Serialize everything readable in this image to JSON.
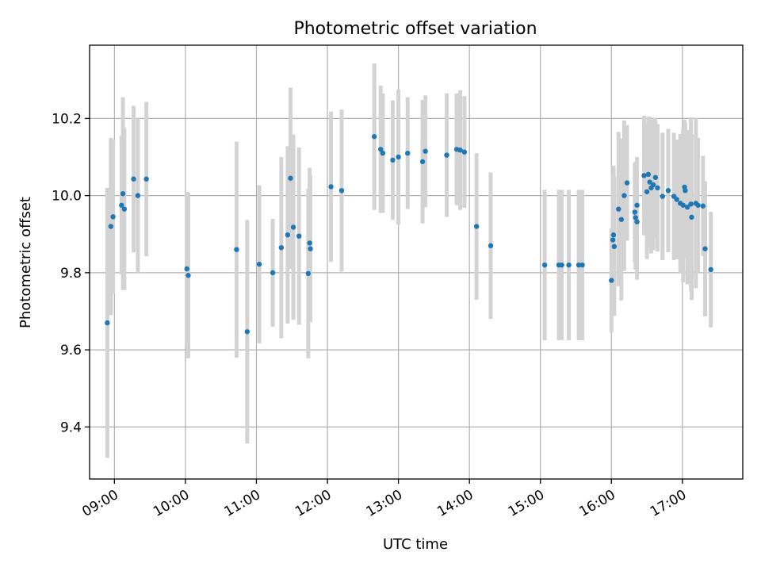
{
  "chart_data": {
    "type": "scatter",
    "title": "Photometric offset variation",
    "xlabel": "UTC time",
    "ylabel": "Photometric offset",
    "xlim": [
      8.65,
      17.85
    ],
    "ylim": [
      9.265,
      10.39
    ],
    "grid": true,
    "point_color": "#1f77b4",
    "errorbar_color": "#d3d3d3",
    "x_ticks": [
      {
        "value": 9,
        "label": "09:00"
      },
      {
        "value": 10,
        "label": "10:00"
      },
      {
        "value": 11,
        "label": "11:00"
      },
      {
        "value": 12,
        "label": "12:00"
      },
      {
        "value": 13,
        "label": "13:00"
      },
      {
        "value": 14,
        "label": "14:00"
      },
      {
        "value": 15,
        "label": "15:00"
      },
      {
        "value": 16,
        "label": "16:00"
      },
      {
        "value": 17,
        "label": "17:00"
      }
    ],
    "y_ticks": [
      {
        "value": 9.4,
        "label": "9.4"
      },
      {
        "value": 9.6,
        "label": "9.6"
      },
      {
        "value": 9.8,
        "label": "9.8"
      },
      {
        "value": 10.0,
        "label": "10.0"
      },
      {
        "value": 10.2,
        "label": "10.2"
      }
    ],
    "points": [
      {
        "x": 8.9,
        "y": 9.67,
        "err": 0.35
      },
      {
        "x": 8.95,
        "y": 9.92,
        "err": 0.23
      },
      {
        "x": 8.98,
        "y": 9.945,
        "err": 0.2
      },
      {
        "x": 9.1,
        "y": 9.975,
        "err": 0.18
      },
      {
        "x": 9.12,
        "y": 10.005,
        "err": 0.25
      },
      {
        "x": 9.14,
        "y": 9.965,
        "err": 0.21
      },
      {
        "x": 9.27,
        "y": 10.043,
        "err": 0.19
      },
      {
        "x": 9.33,
        "y": 10.0,
        "err": 0.2
      },
      {
        "x": 9.45,
        "y": 10.043,
        "err": 0.2
      },
      {
        "x": 10.02,
        "y": 9.81,
        "err": 0.2
      },
      {
        "x": 10.04,
        "y": 9.793,
        "err": 0.215
      },
      {
        "x": 10.72,
        "y": 9.86,
        "err": 0.28
      },
      {
        "x": 10.87,
        "y": 9.647,
        "err": 0.29
      },
      {
        "x": 11.04,
        "y": 9.822,
        "err": 0.205
      },
      {
        "x": 11.23,
        "y": 9.8,
        "err": 0.14
      },
      {
        "x": 11.35,
        "y": 9.865,
        "err": 0.235
      },
      {
        "x": 11.44,
        "y": 9.898,
        "err": 0.23
      },
      {
        "x": 11.48,
        "y": 10.045,
        "err": 0.235
      },
      {
        "x": 11.52,
        "y": 9.918,
        "err": 0.24
      },
      {
        "x": 11.6,
        "y": 9.895,
        "err": 0.23
      },
      {
        "x": 11.73,
        "y": 9.798,
        "err": 0.22
      },
      {
        "x": 11.75,
        "y": 9.877,
        "err": 0.195
      },
      {
        "x": 11.76,
        "y": 9.862,
        "err": 0.19
      },
      {
        "x": 12.05,
        "y": 10.023,
        "err": 0.195
      },
      {
        "x": 12.2,
        "y": 10.013,
        "err": 0.21
      },
      {
        "x": 12.66,
        "y": 10.153,
        "err": 0.19
      },
      {
        "x": 12.75,
        "y": 10.12,
        "err": 0.165
      },
      {
        "x": 12.78,
        "y": 10.11,
        "err": 0.155
      },
      {
        "x": 12.92,
        "y": 10.092,
        "err": 0.155
      },
      {
        "x": 13.0,
        "y": 10.1,
        "err": 0.175
      },
      {
        "x": 13.13,
        "y": 10.11,
        "err": 0.145
      },
      {
        "x": 13.34,
        "y": 10.088,
        "err": 0.16
      },
      {
        "x": 13.38,
        "y": 10.115,
        "err": 0.145
      },
      {
        "x": 13.68,
        "y": 10.105,
        "err": 0.16
      },
      {
        "x": 13.82,
        "y": 10.12,
        "err": 0.145
      },
      {
        "x": 13.87,
        "y": 10.118,
        "err": 0.155
      },
      {
        "x": 13.93,
        "y": 10.113,
        "err": 0.145
      },
      {
        "x": 14.1,
        "y": 9.92,
        "err": 0.19
      },
      {
        "x": 14.3,
        "y": 9.87,
        "err": 0.19
      },
      {
        "x": 15.06,
        "y": 9.82,
        "err": 0.195
      },
      {
        "x": 15.26,
        "y": 9.82,
        "err": 0.195
      },
      {
        "x": 15.3,
        "y": 9.82,
        "err": 0.195
      },
      {
        "x": 15.4,
        "y": 9.82,
        "err": 0.195
      },
      {
        "x": 15.54,
        "y": 9.82,
        "err": 0.195
      },
      {
        "x": 15.59,
        "y": 9.82,
        "err": 0.195
      },
      {
        "x": 16.0,
        "y": 9.78,
        "err": 0.135
      },
      {
        "x": 16.02,
        "y": 9.885,
        "err": 0.175
      },
      {
        "x": 16.03,
        "y": 9.898,
        "err": 0.18
      },
      {
        "x": 16.04,
        "y": 9.868,
        "err": 0.18
      },
      {
        "x": 16.1,
        "y": 9.965,
        "err": 0.2
      },
      {
        "x": 16.14,
        "y": 9.938,
        "err": 0.21
      },
      {
        "x": 16.18,
        "y": 10.0,
        "err": 0.195
      },
      {
        "x": 16.22,
        "y": 10.033,
        "err": 0.15
      },
      {
        "x": 16.33,
        "y": 9.957,
        "err": 0.13
      },
      {
        "x": 16.34,
        "y": 9.943,
        "err": 0.135
      },
      {
        "x": 16.36,
        "y": 9.932,
        "err": 0.15
      },
      {
        "x": 16.36,
        "y": 9.975,
        "err": 0.125
      },
      {
        "x": 16.46,
        "y": 10.052,
        "err": 0.155
      },
      {
        "x": 16.5,
        "y": 10.01,
        "err": 0.175
      },
      {
        "x": 16.52,
        "y": 10.055,
        "err": 0.15
      },
      {
        "x": 16.54,
        "y": 10.035,
        "err": 0.17
      },
      {
        "x": 16.56,
        "y": 10.02,
        "err": 0.17
      },
      {
        "x": 16.59,
        "y": 10.028,
        "err": 0.17
      },
      {
        "x": 16.62,
        "y": 10.047,
        "err": 0.155
      },
      {
        "x": 16.65,
        "y": 10.02,
        "err": 0.165
      },
      {
        "x": 16.72,
        "y": 9.998,
        "err": 0.165
      },
      {
        "x": 16.8,
        "y": 10.013,
        "err": 0.16
      },
      {
        "x": 16.88,
        "y": 9.998,
        "err": 0.165
      },
      {
        "x": 16.92,
        "y": 9.99,
        "err": 0.155
      },
      {
        "x": 16.97,
        "y": 9.98,
        "err": 0.18
      },
      {
        "x": 17.01,
        "y": 9.975,
        "err": 0.2
      },
      {
        "x": 17.03,
        "y": 10.022,
        "err": 0.175
      },
      {
        "x": 17.04,
        "y": 10.013,
        "err": 0.175
      },
      {
        "x": 17.07,
        "y": 9.97,
        "err": 0.2
      },
      {
        "x": 17.12,
        "y": 9.978,
        "err": 0.225
      },
      {
        "x": 17.13,
        "y": 9.944,
        "err": 0.215
      },
      {
        "x": 17.19,
        "y": 9.98,
        "err": 0.22
      },
      {
        "x": 17.22,
        "y": 9.975,
        "err": 0.175
      },
      {
        "x": 17.29,
        "y": 9.973,
        "err": 0.13
      },
      {
        "x": 17.32,
        "y": 9.862,
        "err": 0.175
      },
      {
        "x": 17.4,
        "y": 9.808,
        "err": 0.15
      }
    ]
  }
}
